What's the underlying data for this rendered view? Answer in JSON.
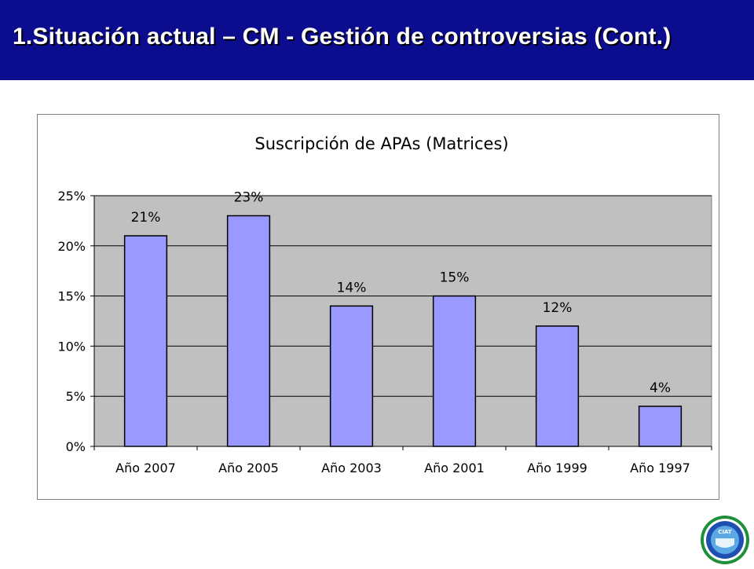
{
  "slide": {
    "title": "1.Situación actual – CM - Gestión de controversias (Cont.)",
    "header_color": "#0b0c8e"
  },
  "logo": {
    "icon": "ciat-seal-icon",
    "text": "CIAT"
  },
  "chart_data": {
    "type": "bar",
    "title": "Suscripción de APAs (Matrices)",
    "xlabel": "",
    "ylabel": "",
    "categories": [
      "Año 2007",
      "Año 2005",
      "Año 2003",
      "Año 2001",
      "Año 1999",
      "Año 1997"
    ],
    "values": [
      21,
      23,
      14,
      15,
      12,
      4
    ],
    "data_labels": [
      "21%",
      "23%",
      "14%",
      "15%",
      "12%",
      "4%"
    ],
    "ylim": [
      0,
      25
    ],
    "yticks": [
      0,
      5,
      10,
      15,
      20,
      25
    ],
    "ytick_labels": [
      "0%",
      "5%",
      "10%",
      "15%",
      "20%",
      "25%"
    ],
    "grid": true,
    "legend": "none",
    "colors": {
      "bar_fill": "#9999ff",
      "bar_stroke": "#000000",
      "plot_background": "#c0c0c0",
      "gridline": "#000000"
    }
  }
}
